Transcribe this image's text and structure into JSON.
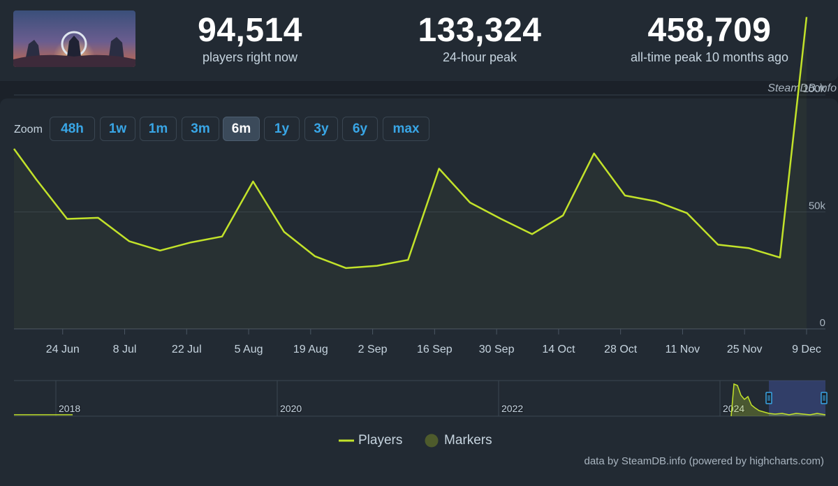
{
  "header": {
    "stats": [
      {
        "value": "94,514",
        "label": "players right now"
      },
      {
        "value": "133,324",
        "label": "24-hour peak"
      },
      {
        "value": "458,709",
        "label": "all-time peak 10 months ago"
      }
    ],
    "credit": "SteamDB.info"
  },
  "zoom": {
    "label": "Zoom",
    "buttons": [
      "48h",
      "1w",
      "1m",
      "3m",
      "6m",
      "1y",
      "3y",
      "6y",
      "max"
    ],
    "active": "6m"
  },
  "colors": {
    "line": "#c2e22a",
    "accent": "#39a6e6",
    "marker": "#4e5b2c",
    "navigator_band": "#3b4a86"
  },
  "chart_data": {
    "type": "line",
    "series": [
      {
        "name": "Players",
        "x": [
          "2024-06-13",
          "2024-06-18",
          "2024-06-25",
          "2024-07-02",
          "2024-07-09",
          "2024-07-16",
          "2024-07-23",
          "2024-07-30",
          "2024-08-06",
          "2024-08-13",
          "2024-08-20",
          "2024-08-27",
          "2024-09-03",
          "2024-09-10",
          "2024-09-17",
          "2024-09-24",
          "2024-10-01",
          "2024-10-08",
          "2024-10-15",
          "2024-10-22",
          "2024-10-29",
          "2024-11-05",
          "2024-11-12",
          "2024-11-19",
          "2024-11-26",
          "2024-12-03",
          "2024-12-09"
        ],
        "values": [
          77000,
          64000,
          47000,
          47500,
          37500,
          33500,
          37000,
          39500,
          63000,
          41500,
          31000,
          26000,
          27000,
          29500,
          68500,
          54000,
          47000,
          40500,
          48500,
          75000,
          57000,
          54500,
          49500,
          36000,
          34500,
          30500,
          133324
        ]
      }
    ],
    "x_ticks": [
      "24 Jun",
      "8 Jul",
      "22 Jul",
      "5 Aug",
      "19 Aug",
      "2 Sep",
      "16 Sep",
      "30 Sep",
      "14 Oct",
      "28 Oct",
      "11 Nov",
      "25 Nov",
      "9 Dec"
    ],
    "y_ticks": [
      "0",
      "50k",
      "100k"
    ],
    "ylim": [
      0,
      150000
    ],
    "grid": true,
    "legend": [
      "Players",
      "Markers"
    ],
    "legend_position": "bottom-center",
    "navigator": {
      "ticks": [
        "2018",
        "2020",
        "2022",
        "2024"
      ],
      "range_selected": "last 6 months"
    }
  },
  "footer": {
    "credit": "data by SteamDB.info (powered by highcharts.com)"
  }
}
